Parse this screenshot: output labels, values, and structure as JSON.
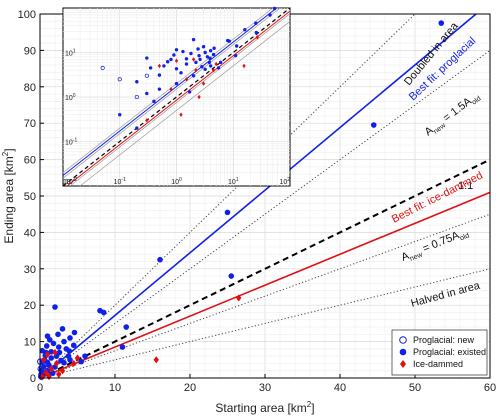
{
  "chart_data": {
    "type": "scatter",
    "xlabel": "Starting area [km",
    "xlabel_sup": "2",
    "xlabel_end": "]",
    "ylabel": "Ending area [km",
    "ylabel_sup": "2",
    "ylabel_end": "]",
    "xlim": [
      0,
      60
    ],
    "ylim": [
      0,
      100
    ],
    "xticks": [
      "0",
      "10",
      "20",
      "30",
      "40",
      "50",
      "60"
    ],
    "yticks": [
      "0",
      "10",
      "20",
      "30",
      "40",
      "50",
      "60",
      "70",
      "80",
      "90",
      "100"
    ],
    "grid": true,
    "legend_position": "bottom-right",
    "colors": {
      "proglacial": "#1020e8",
      "ice_dammed": "#e01010",
      "reference": "#000000",
      "doubled": "#444444"
    },
    "legend": [
      {
        "label": "Proglacial: new",
        "marker": "open-circle"
      },
      {
        "label": "Proglacial: existed",
        "marker": "filled-circle"
      },
      {
        "label": "Ice-dammed",
        "marker": "diamond"
      }
    ],
    "lines": [
      {
        "name": "Doubled in area",
        "slope": 2.0,
        "style": "dotted"
      },
      {
        "name": "A_new = 1.5A_old",
        "slope": 1.5,
        "style": "dotted"
      },
      {
        "name": "Best fit: proglacial",
        "slope": 1.72,
        "style": "solid",
        "color": "blue"
      },
      {
        "name": "1:1",
        "slope": 1.0,
        "style": "dashed"
      },
      {
        "name": "Best fit: ice-dammed",
        "slope": 0.85,
        "style": "solid",
        "color": "red"
      },
      {
        "name": "A_new = 0.75A_old",
        "slope": 0.75,
        "style": "dotted"
      },
      {
        "name": "Halved in area",
        "slope": 0.5,
        "style": "dotted"
      }
    ],
    "annotations": {
      "doubled": "Doubled in area",
      "best_proglacial": "Best fit: proglacial",
      "a15_pre": "A",
      "a15_sub1": "new",
      "a15_mid": " = 1.5A",
      "a15_sub2": "old",
      "one_to_one": "1:1",
      "best_ice": "Best fit: ice-dammed",
      "a075_pre": "A",
      "a075_sub1": "new",
      "a075_mid": " = 0.75A",
      "a075_sub2": "old",
      "halved": "Halved in area"
    },
    "series": [
      {
        "name": "Proglacial: new",
        "points": [
          [
            0.05,
            4.5
          ],
          [
            0.1,
            2.5
          ],
          [
            0.2,
            1.0
          ],
          [
            0.3,
            3.0
          ]
        ]
      },
      {
        "name": "Proglacial: existed",
        "points": [
          [
            53.5,
            97.5
          ],
          [
            44.5,
            69.5
          ],
          [
            25.5,
            28.0
          ],
          [
            25.0,
            45.5
          ],
          [
            16.0,
            32.5
          ],
          [
            8.5,
            18.0
          ],
          [
            8.0,
            18.5
          ],
          [
            11.5,
            14.0
          ],
          [
            11.0,
            8.5
          ],
          [
            2.0,
            19.5
          ],
          [
            3.0,
            13.5
          ],
          [
            4.0,
            11.0
          ],
          [
            1.0,
            11.5
          ],
          [
            2.2,
            6.0
          ],
          [
            1.5,
            5.5
          ],
          [
            0.8,
            7.0
          ],
          [
            0.3,
            7.5
          ],
          [
            3.5,
            8.0
          ],
          [
            2.5,
            8.5
          ],
          [
            3.2,
            10.0
          ],
          [
            4.5,
            9.0
          ],
          [
            1.8,
            9.5
          ],
          [
            0.6,
            5.0
          ],
          [
            1.2,
            3.5
          ],
          [
            0.2,
            2.2
          ],
          [
            0.1,
            0.4
          ],
          [
            0.5,
            1.5
          ],
          [
            2.8,
            4.8
          ],
          [
            3.8,
            6.0
          ],
          [
            4.0,
            5.0
          ],
          [
            2.0,
            3.0
          ],
          [
            1.0,
            2.0
          ],
          [
            0.4,
            0.8
          ],
          [
            0.7,
            6.2
          ],
          [
            1.5,
            7.2
          ],
          [
            2.6,
            7.0
          ],
          [
            3.2,
            4.2
          ],
          [
            0.2,
            0.2
          ],
          [
            0.35,
            4.5
          ],
          [
            1.0,
            4.3
          ],
          [
            5.5,
            4.5
          ],
          [
            6.0,
            6.0
          ],
          [
            2.4,
            12.0
          ],
          [
            1.3,
            10.5
          ],
          [
            0.9,
            8.8
          ],
          [
            3.9,
            7.4
          ],
          [
            4.6,
            12.5
          ],
          [
            0.5,
            3.1
          ],
          [
            1.7,
            1.3
          ],
          [
            0.3,
            1.2
          ]
        ]
      },
      {
        "name": "Ice-dammed",
        "points": [
          [
            26.5,
            22.0
          ],
          [
            15.5,
            5.0
          ],
          [
            5.0,
            5.5
          ],
          [
            4.5,
            4.0
          ],
          [
            2.0,
            7.0
          ],
          [
            1.0,
            6.5
          ],
          [
            0.5,
            5.0
          ],
          [
            1.5,
            2.5
          ],
          [
            3.0,
            2.0
          ],
          [
            0.8,
            1.5
          ],
          [
            2.5,
            1.0
          ],
          [
            0.3,
            0.3
          ],
          [
            2.2,
            4.0
          ],
          [
            1.2,
            0.4
          ]
        ]
      }
    ]
  }
}
